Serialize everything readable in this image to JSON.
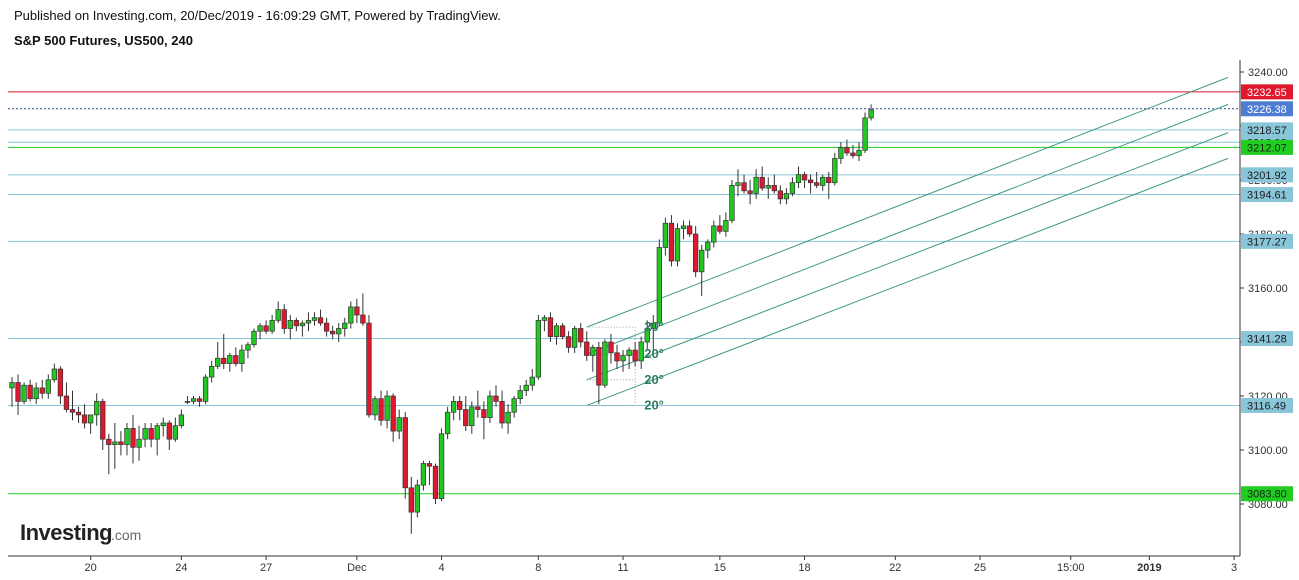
{
  "header": {
    "published": "Published on Investing.com, 20/Dec/2019 - 16:09:29 GMT, Powered by TradingView.",
    "title": "S&P 500 Futures, US500, 240"
  },
  "logo": {
    "main": "Investing",
    "suffix": ".com"
  },
  "colors": {
    "up": "#22c722",
    "down": "#e0182d",
    "hline_blue": "#8ac6d9",
    "hline_green": "#22cc22",
    "hline_red": "#e0182d",
    "fan": "#3f9a84",
    "badge_blue": "#8ac6d9",
    "badge_green": "#22cc22",
    "badge_red": "#e0182d",
    "badge_current": "#4f7dd1"
  },
  "chart_data": {
    "type": "candlestick",
    "title": "S&P 500 Futures, US500, 240",
    "ylim": [
      3060,
      3250
    ],
    "y_ticks": [
      3080,
      3100,
      3120,
      3140,
      3160,
      3180,
      3200,
      3220,
      3240
    ],
    "y_ticks_visible": [
      "3080.00",
      "3100.00",
      "3120.00",
      "3140.00",
      "3160.00",
      "3180.00",
      "3200.00",
      "3220.00",
      "3240.00"
    ],
    "x_ticks": [
      {
        "label": "20",
        "bar": 13
      },
      {
        "label": "24",
        "bar": 28
      },
      {
        "label": "27",
        "bar": 42
      },
      {
        "label": "Dec",
        "bar": 57
      },
      {
        "label": "4",
        "bar": 71
      },
      {
        "label": "8",
        "bar": 87
      },
      {
        "label": "11",
        "bar": 101
      },
      {
        "label": "15",
        "bar": 117
      },
      {
        "label": "18",
        "bar": 131
      },
      {
        "label": "22",
        "bar": 146
      },
      {
        "label": "25",
        "bar": 160
      },
      {
        "label": "15:00",
        "bar": 175
      },
      {
        "label": "2019",
        "bar": 188,
        "bold": true
      },
      {
        "label": "3",
        "bar": 202
      }
    ],
    "horizontal_lines": [
      {
        "price": 3232.65,
        "label": "3232.65",
        "kind": "red"
      },
      {
        "price": 3226.38,
        "label": "3226.38",
        "kind": "current"
      },
      {
        "price": 3218.57,
        "label": "3218.57",
        "kind": "blue"
      },
      {
        "price": 3213.98,
        "label": "3213.98",
        "kind": "blue"
      },
      {
        "price": 3212.07,
        "label": "3212.07",
        "kind": "green"
      },
      {
        "price": 3201.92,
        "label": "3201.92",
        "kind": "blue"
      },
      {
        "price": 3194.61,
        "label": "3194.61",
        "kind": "blue"
      },
      {
        "price": 3177.27,
        "label": "3177.27",
        "kind": "blue"
      },
      {
        "price": 3141.28,
        "label": "3141.28",
        "kind": "blue"
      },
      {
        "price": 3116.49,
        "label": "3116.49",
        "kind": "blue"
      },
      {
        "price": 3083.8,
        "label": "3083.80",
        "kind": "green"
      }
    ],
    "fan_lines": [
      {
        "start_bar": 95,
        "start_price": 3145.5,
        "end_bar": 201,
        "end_price": 3238
      },
      {
        "start_bar": 95,
        "start_price": 3135.5,
        "end_bar": 201,
        "end_price": 3228
      },
      {
        "start_bar": 95,
        "start_price": 3126.0,
        "end_bar": 201,
        "end_price": 3217.5
      },
      {
        "start_bar": 95,
        "start_price": 3116.5,
        "end_bar": 201,
        "end_price": 3208
      }
    ],
    "angle_labels": [
      "20°",
      "20°",
      "20°",
      "20°"
    ],
    "candles": [
      [
        3123,
        3127,
        3116,
        3125
      ],
      [
        3125,
        3128,
        3113,
        3118
      ],
      [
        3118,
        3125,
        3117,
        3124
      ],
      [
        3124,
        3126,
        3118,
        3119
      ],
      [
        3119,
        3125,
        3117,
        3123
      ],
      [
        3123,
        3126,
        3119,
        3121
      ],
      [
        3121,
        3128,
        3119,
        3126
      ],
      [
        3126,
        3132,
        3125,
        3130
      ],
      [
        3130,
        3131,
        3117,
        3120
      ],
      [
        3120,
        3125,
        3114,
        3115
      ],
      [
        3115,
        3122,
        3111,
        3114
      ],
      [
        3114,
        3116,
        3110,
        3113
      ],
      [
        3113,
        3117,
        3108,
        3110
      ],
      [
        3110,
        3113,
        3106,
        3113
      ],
      [
        3113,
        3121,
        3109,
        3118
      ],
      [
        3118,
        3119,
        3100,
        3104
      ],
      [
        3104,
        3106,
        3091,
        3102
      ],
      [
        3102,
        3110,
        3093,
        3103
      ],
      [
        3103,
        3107,
        3098,
        3102
      ],
      [
        3102,
        3110,
        3098,
        3108
      ],
      [
        3108,
        3113,
        3095,
        3101
      ],
      [
        3101,
        3109,
        3096,
        3104
      ],
      [
        3104,
        3110,
        3101,
        3108
      ],
      [
        3108,
        3110,
        3101,
        3104
      ],
      [
        3104,
        3110,
        3098,
        3109
      ],
      [
        3109,
        3112,
        3105,
        3110
      ],
      [
        3110,
        3111,
        3100,
        3104
      ],
      [
        3104,
        3112,
        3103,
        3109
      ],
      [
        3109,
        3115,
        3108,
        3113
      ],
      [
        3118,
        3120,
        3117,
        3118
      ],
      [
        3118,
        3120,
        3117,
        3119
      ],
      [
        3119,
        3120,
        3116,
        3118
      ],
      [
        3118,
        3128,
        3117,
        3127
      ],
      [
        3127,
        3133,
        3125,
        3131
      ],
      [
        3131,
        3140,
        3130,
        3134
      ],
      [
        3134,
        3143,
        3130,
        3132
      ],
      [
        3132,
        3136,
        3129,
        3135
      ],
      [
        3135,
        3138,
        3131,
        3132
      ],
      [
        3132,
        3139,
        3129,
        3137
      ],
      [
        3137,
        3140,
        3134,
        3139
      ],
      [
        3139,
        3145,
        3138,
        3144
      ],
      [
        3144,
        3147,
        3141,
        3146
      ],
      [
        3146,
        3148,
        3143,
        3144
      ],
      [
        3144,
        3150,
        3143,
        3148
      ],
      [
        3148,
        3155,
        3147,
        3152
      ],
      [
        3152,
        3154,
        3143,
        3145
      ],
      [
        3145,
        3150,
        3141,
        3148
      ],
      [
        3148,
        3149,
        3144,
        3146
      ],
      [
        3146,
        3148,
        3142,
        3147
      ],
      [
        3147,
        3151,
        3144,
        3148
      ],
      [
        3148,
        3151,
        3146,
        3149
      ],
      [
        3149,
        3152,
        3146,
        3147
      ],
      [
        3147,
        3149,
        3142,
        3144
      ],
      [
        3144,
        3146,
        3141,
        3143
      ],
      [
        3143,
        3147,
        3140,
        3145
      ],
      [
        3145,
        3149,
        3142,
        3147
      ],
      [
        3147,
        3155,
        3145,
        3153
      ],
      [
        3153,
        3156,
        3147,
        3150
      ],
      [
        3150,
        3158,
        3146,
        3147
      ],
      [
        3147,
        3150,
        3112,
        3113
      ],
      [
        3113,
        3120,
        3111,
        3119
      ],
      [
        3119,
        3122,
        3109,
        3111
      ],
      [
        3111,
        3122,
        3108,
        3120
      ],
      [
        3120,
        3121,
        3103,
        3107
      ],
      [
        3107,
        3115,
        3104,
        3112
      ],
      [
        3112,
        3114,
        3082,
        3086
      ],
      [
        3086,
        3090,
        3069,
        3077
      ],
      [
        3077,
        3089,
        3075,
        3087
      ],
      [
        3087,
        3096,
        3085,
        3095
      ],
      [
        3095,
        3096,
        3087,
        3094
      ],
      [
        3094,
        3095,
        3080,
        3082
      ],
      [
        3082,
        3108,
        3081,
        3106
      ],
      [
        3106,
        3116,
        3104,
        3114
      ],
      [
        3114,
        3120,
        3111,
        3118
      ],
      [
        3118,
        3120,
        3111,
        3115
      ],
      [
        3115,
        3120,
        3107,
        3109
      ],
      [
        3109,
        3118,
        3106,
        3116
      ],
      [
        3116,
        3122,
        3112,
        3115
      ],
      [
        3115,
        3118,
        3104,
        3112
      ],
      [
        3112,
        3122,
        3110,
        3120
      ],
      [
        3120,
        3124,
        3116,
        3118
      ],
      [
        3118,
        3122,
        3108,
        3110
      ],
      [
        3110,
        3117,
        3106,
        3114
      ],
      [
        3114,
        3120,
        3112,
        3119
      ],
      [
        3119,
        3124,
        3117,
        3122
      ],
      [
        3122,
        3126,
        3120,
        3124
      ],
      [
        3124,
        3130,
        3122,
        3127
      ],
      [
        3127,
        3150,
        3126,
        3148
      ],
      [
        3148,
        3150,
        3144,
        3149
      ],
      [
        3149,
        3151,
        3140,
        3142
      ],
      [
        3142,
        3147,
        3139,
        3146
      ],
      [
        3146,
        3147,
        3141,
        3142
      ],
      [
        3142,
        3144,
        3136,
        3138
      ],
      [
        3138,
        3146,
        3136,
        3145
      ],
      [
        3145,
        3147,
        3138,
        3140
      ],
      [
        3140,
        3144,
        3133,
        3135
      ],
      [
        3135,
        3139,
        3129,
        3138
      ],
      [
        3138,
        3140,
        3117,
        3124
      ],
      [
        3124,
        3141,
        3123,
        3140
      ],
      [
        3140,
        3143,
        3132,
        3136
      ],
      [
        3136,
        3139,
        3130,
        3133
      ],
      [
        3133,
        3137,
        3129,
        3135
      ],
      [
        3135,
        3138,
        3130,
        3137
      ],
      [
        3137,
        3140,
        3131,
        3133
      ],
      [
        3133,
        3142,
        3130,
        3140
      ],
      [
        3140,
        3148,
        3137,
        3145
      ],
      [
        3145,
        3150,
        3136,
        3147
      ],
      [
        3147,
        3178,
        3146,
        3175
      ],
      [
        3175,
        3186,
        3172,
        3184
      ],
      [
        3184,
        3187,
        3168,
        3170
      ],
      [
        3170,
        3184,
        3168,
        3182
      ],
      [
        3182,
        3185,
        3178,
        3183
      ],
      [
        3183,
        3185,
        3179,
        3180
      ],
      [
        3180,
        3183,
        3164,
        3166
      ],
      [
        3166,
        3176,
        3157,
        3174
      ],
      [
        3174,
        3178,
        3171,
        3177
      ],
      [
        3177,
        3185,
        3175,
        3183
      ],
      [
        3183,
        3187,
        3180,
        3181
      ],
      [
        3181,
        3188,
        3179,
        3185
      ],
      [
        3185,
        3200,
        3184,
        3198
      ],
      [
        3198,
        3204,
        3194,
        3199
      ],
      [
        3199,
        3202,
        3195,
        3196
      ],
      [
        3196,
        3200,
        3191,
        3195
      ],
      [
        3195,
        3204,
        3193,
        3201
      ],
      [
        3201,
        3205,
        3196,
        3197
      ],
      [
        3197,
        3201,
        3193,
        3198
      ],
      [
        3198,
        3202,
        3195,
        3196
      ],
      [
        3196,
        3198,
        3191,
        3193
      ],
      [
        3193,
        3197,
        3191,
        3195
      ],
      [
        3195,
        3201,
        3194,
        3199
      ],
      [
        3199,
        3205,
        3197,
        3202
      ],
      [
        3202,
        3203,
        3197,
        3200
      ],
      [
        3200,
        3202,
        3195,
        3199
      ],
      [
        3199,
        3203,
        3197,
        3198
      ],
      [
        3198,
        3202,
        3196,
        3201
      ],
      [
        3201,
        3203,
        3193,
        3199
      ],
      [
        3199,
        3210,
        3198,
        3208
      ],
      [
        3208,
        3214,
        3206,
        3212
      ],
      [
        3212,
        3215,
        3209,
        3210
      ],
      [
        3210,
        3213,
        3208,
        3209
      ],
      [
        3209,
        3214,
        3207,
        3211
      ],
      [
        3211,
        3225,
        3210,
        3223
      ],
      [
        3223,
        3228,
        3222,
        3226
      ]
    ]
  }
}
